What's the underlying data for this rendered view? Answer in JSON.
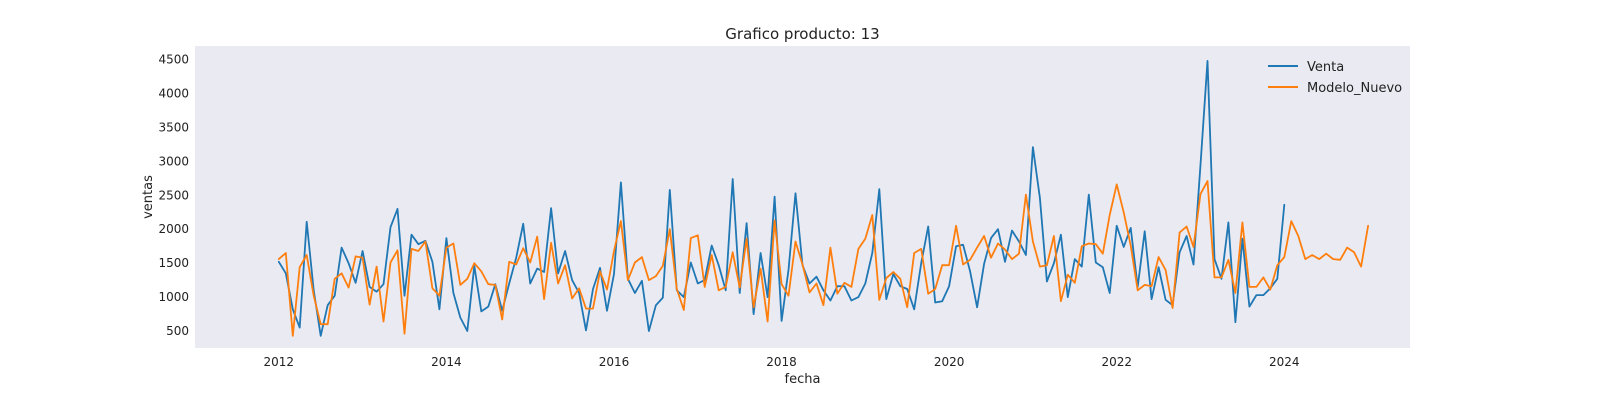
{
  "chart_data": {
    "type": "line",
    "title": "Grafico producto: 13",
    "xlabel": "fecha",
    "ylabel": "ventas",
    "xlim": [
      "2011-01-01",
      "2025-07-01"
    ],
    "ylim": [
      250,
      4700
    ],
    "yticks": [
      500,
      1000,
      1500,
      2000,
      2500,
      3000,
      3500,
      4000,
      4500
    ],
    "xticks": [
      {
        "date": "2012-01-01",
        "label": "2012"
      },
      {
        "date": "2014-01-01",
        "label": "2014"
      },
      {
        "date": "2016-01-01",
        "label": "2016"
      },
      {
        "date": "2018-01-01",
        "label": "2018"
      },
      {
        "date": "2020-01-01",
        "label": "2020"
      },
      {
        "date": "2022-01-01",
        "label": "2022"
      },
      {
        "date": "2024-01-01",
        "label": "2024"
      }
    ],
    "grid": false,
    "legend_position": "top-right",
    "x_start": "2012-01",
    "x_frequency": "monthly",
    "series": [
      {
        "name": "Venta",
        "color": "#1f77b4",
        "values": [
          1520,
          1350,
          820,
          550,
          2110,
          1100,
          430,
          880,
          1020,
          1730,
          1500,
          1210,
          1680,
          1150,
          1080,
          1190,
          2030,
          2300,
          1020,
          1920,
          1780,
          1830,
          1520,
          820,
          1870,
          1060,
          700,
          500,
          1460,
          790,
          860,
          1190,
          800,
          1200,
          1580,
          2080,
          1200,
          1420,
          1370,
          2310,
          1350,
          1680,
          1250,
          1060,
          510,
          1120,
          1430,
          800,
          1340,
          2690,
          1270,
          1060,
          1240,
          500,
          880,
          990,
          2580,
          1100,
          1000,
          1510,
          1200,
          1250,
          1760,
          1470,
          1100,
          2740,
          1060,
          2090,
          750,
          1650,
          1000,
          2480,
          650,
          1400,
          2530,
          1470,
          1200,
          1300,
          1100,
          950,
          1160,
          1160,
          950,
          1000,
          1200,
          1650,
          2590,
          970,
          1340,
          1160,
          1120,
          820,
          1500,
          2040,
          920,
          940,
          1160,
          1750,
          1770,
          1380,
          850,
          1490,
          1870,
          2000,
          1520,
          1980,
          1820,
          1620,
          3210,
          2460,
          1230,
          1500,
          1920,
          1000,
          1560,
          1450,
          2510,
          1510,
          1440,
          1060,
          2050,
          1740,
          2020,
          1150,
          1970,
          970,
          1440,
          960,
          880,
          1660,
          1900,
          1480,
          2950,
          4480,
          1560,
          1270,
          2100,
          630,
          1860,
          860,
          1030,
          1030,
          1130,
          1270,
          2360
        ]
      },
      {
        "name": "Modelo_Nuevo",
        "color": "#ff7f0e",
        "values": [
          1560,
          1650,
          430,
          1440,
          1620,
          1020,
          600,
          600,
          1270,
          1350,
          1140,
          1600,
          1580,
          890,
          1450,
          640,
          1510,
          1690,
          460,
          1710,
          1680,
          1820,
          1130,
          1020,
          1730,
          1790,
          1180,
          1270,
          1500,
          1380,
          1190,
          1180,
          670,
          1520,
          1480,
          1720,
          1510,
          1890,
          970,
          1800,
          1200,
          1470,
          980,
          1130,
          830,
          830,
          1380,
          1110,
          1680,
          2120,
          1250,
          1510,
          1590,
          1250,
          1310,
          1460,
          2000,
          1120,
          810,
          1870,
          1910,
          1150,
          1620,
          1100,
          1150,
          1660,
          1140,
          1860,
          850,
          1420,
          640,
          2130,
          1190,
          1020,
          1820,
          1480,
          1070,
          1200,
          880,
          1730,
          1050,
          1210,
          1150,
          1710,
          1860,
          2210,
          960,
          1280,
          1370,
          1270,
          850,
          1650,
          1710,
          1050,
          1120,
          1470,
          1470,
          2050,
          1480,
          1550,
          1730,
          1900,
          1580,
          1790,
          1700,
          1560,
          1640,
          2510,
          1820,
          1450,
          1470,
          1900,
          940,
          1330,
          1210,
          1750,
          1790,
          1780,
          1640,
          2210,
          2660,
          2250,
          1760,
          1100,
          1180,
          1160,
          1590,
          1400,
          840,
          1950,
          2040,
          1740,
          2520,
          2710,
          1290,
          1290,
          1550,
          1060,
          2100,
          1150,
          1150,
          1290,
          1110,
          1470,
          1590,
          2120,
          1900,
          1560,
          1620,
          1560,
          1640,
          1560,
          1550,
          1730,
          1660,
          1450,
          2050
        ]
      }
    ]
  }
}
